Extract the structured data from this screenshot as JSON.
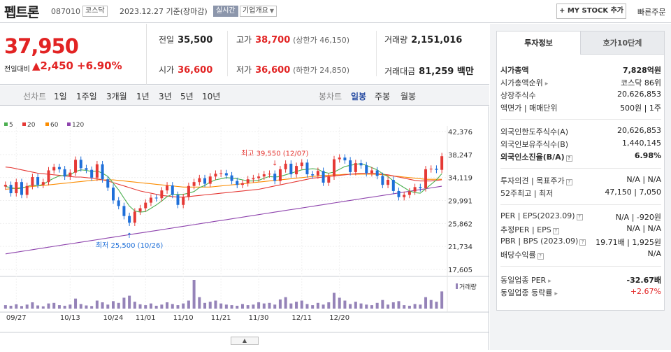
{
  "header": {
    "name": "펩트론",
    "code": "087010",
    "market": "코스닥",
    "date_info": "2023.12.27 기준(장마감)",
    "realtime": "실시간",
    "company_overview": "기업개요",
    "mystock_label": "+ MY STOCK 추가",
    "quick_order": "빠른주문"
  },
  "price": {
    "current": "37,950",
    "change_label": "전일대비",
    "change_value": "▲2,450",
    "change_pct": "+6.90%"
  },
  "summary": {
    "prev_label": "전일",
    "prev": "35,500",
    "high_label": "고가",
    "high": "38,700",
    "upper_limit": "(상한가 46,150)",
    "volume_label": "거래량",
    "volume": "2,151,016",
    "open_label": "시가",
    "open": "36,600",
    "low_label": "저가",
    "low": "36,600",
    "lower_limit": "(하한가 24,850)",
    "amount_label": "거래대금",
    "amount": "81,259 백만"
  },
  "chart_tabs": {
    "line_label": "선차트",
    "line": [
      "1일",
      "1주일",
      "3개월",
      "1년",
      "3년",
      "5년",
      "10년"
    ],
    "candle_label": "봉차트",
    "candle": [
      "일봉",
      "주봉",
      "월봉"
    ],
    "active_candle": "일봉"
  },
  "chart_data": {
    "type": "candlestick",
    "title": "",
    "legend": [
      "5",
      "20",
      "60",
      "120"
    ],
    "legend_colors": [
      "#4caf50",
      "#e53935",
      "#fb8c00",
      "#8e44ad"
    ],
    "y_ticks": [
      "42,376",
      "38,247",
      "34,119",
      "29,991",
      "25,862",
      "21,734",
      "17,605"
    ],
    "ylim": [
      17605,
      42376
    ],
    "x_labels": [
      "09/27",
      "10/13",
      "10/24",
      "11/01",
      "11/10",
      "11/21",
      "11/30",
      "12/11",
      "12/20"
    ],
    "max_annotation": "최고 39,550 (12/07)",
    "min_annotation": "최저 25,500 (10/26)",
    "volume_label": "거래량",
    "closes": [
      32800,
      31300,
      33300,
      31000,
      32600,
      34200,
      32800,
      33300,
      35400,
      36000,
      35600,
      34300,
      35000,
      37300,
      35800,
      35500,
      34100,
      36500,
      33800,
      32300,
      30000,
      29000,
      27200,
      26000,
      28000,
      28600,
      29600,
      30500,
      30400,
      31800,
      32700,
      31000,
      29200,
      30600,
      32600,
      33300,
      34000,
      33000,
      34300,
      34800,
      34900,
      34500,
      33500,
      32800,
      33100,
      33800,
      34000,
      34300,
      34700,
      34800,
      33500,
      35600,
      36600,
      34700,
      36200,
      36800,
      34700,
      34500,
      35300,
      33200,
      34300,
      37400,
      37700,
      37200,
      35100,
      36700,
      36300,
      34900,
      35400,
      34400,
      32800,
      33700,
      31700,
      30600,
      31000,
      31600,
      32400,
      32200,
      35600,
      35700,
      35500,
      37950
    ],
    "ma5": [
      32500,
      32300,
      32100,
      32200,
      32500,
      32800,
      32600,
      32900,
      33500,
      34000,
      34400,
      34500,
      34600,
      35200,
      35500,
      35400,
      35200,
      35300,
      34900,
      34300,
      33100,
      31900,
      30400,
      29000,
      28100,
      27900,
      28000,
      28600,
      29200,
      29900,
      30700,
      31100,
      31100,
      31100,
      31300,
      31600,
      32300,
      32700,
      33300,
      33700,
      33900,
      34100,
      34000,
      33900,
      33700,
      33500,
      33500,
      33600,
      34000,
      34300,
      34200,
      34300,
      34600,
      34900,
      35200,
      35500,
      35600,
      35700,
      35600,
      35100,
      34900,
      35100,
      35600,
      36100,
      36300,
      36500,
      36600,
      36300,
      35900,
      35500,
      34800,
      34300,
      33500,
      32900,
      32300,
      31700,
      31400,
      31300,
      32100,
      32900,
      33700,
      34800
    ],
    "ma20": [
      36000,
      35900,
      35700,
      35500,
      35300,
      35100,
      34900,
      34800,
      34700,
      34600,
      34500,
      34400,
      34300,
      34200,
      34200,
      34100,
      34000,
      33900,
      33700,
      33500,
      33200,
      32900,
      32600,
      32300,
      32000,
      31700,
      31500,
      31300,
      31100,
      30900,
      30800,
      30700,
      30600,
      30600,
      30700,
      30800,
      30900,
      31000,
      31100,
      31200,
      31300,
      31400,
      31500,
      31600,
      31700,
      31800,
      31900,
      32000,
      32200,
      32400,
      32600,
      32800,
      33000,
      33200,
      33400,
      33600,
      33800,
      34000,
      34100,
      34200,
      34300,
      34400,
      34500,
      34600,
      34700,
      34800,
      34900,
      34900,
      34900,
      34800,
      34700,
      34600,
      34400,
      34200,
      34000,
      33800,
      33600,
      33500,
      33500,
      33500,
      33600,
      33700
    ],
    "ma60": [
      32000,
      32100,
      32200,
      32300,
      32400,
      32500,
      32600,
      32700,
      32800,
      32900,
      33000,
      33100,
      33200,
      33300,
      33400,
      33500,
      33600,
      33700,
      33700,
      33700,
      33700,
      33600,
      33500,
      33400,
      33300,
      33200,
      33100,
      33000,
      32900,
      32800,
      32700,
      32600,
      32500,
      32400,
      32400,
      32400,
      32400,
      32400,
      32400,
      32500,
      32600,
      32700,
      32800,
      32900,
      33000,
      33100,
      33200,
      33300,
      33400,
      33500,
      33600,
      33700,
      33800,
      33900,
      34000,
      34100,
      34200,
      34300,
      34400,
      34500,
      34500,
      34600,
      34600,
      34700,
      34700,
      34700,
      34700,
      34700,
      34700,
      34700,
      34600,
      34500,
      34400,
      34300,
      34200,
      34100,
      34000,
      33900,
      33800,
      33800,
      33800,
      33800
    ],
    "ma120": [
      20400,
      20550,
      20700,
      20850,
      21000,
      21150,
      21300,
      21450,
      21600,
      21750,
      21900,
      22050,
      22200,
      22350,
      22500,
      22650,
      22800,
      22950,
      23100,
      23250,
      23400,
      23550,
      23700,
      23850,
      24000,
      24150,
      24300,
      24450,
      24600,
      24750,
      24900,
      25050,
      25200,
      25350,
      25500,
      25650,
      25800,
      25950,
      26100,
      26250,
      26400,
      26550,
      26700,
      26850,
      27000,
      27150,
      27300,
      27450,
      27600,
      27750,
      27900,
      28050,
      28200,
      28350,
      28500,
      28650,
      28800,
      28950,
      29100,
      29250,
      29400,
      29550,
      29700,
      29850,
      30000,
      30150,
      30300,
      30450,
      30600,
      30750,
      30900,
      31050,
      31200,
      31350,
      31500,
      31650,
      31800,
      31950,
      32100,
      32250,
      32400,
      32550
    ],
    "volume_max": 100,
    "volumes": [
      12,
      10,
      15,
      9,
      14,
      22,
      11,
      8,
      18,
      20,
      12,
      10,
      14,
      35,
      16,
      11,
      9,
      28,
      22,
      14,
      26,
      20,
      38,
      45,
      24,
      15,
      12,
      18,
      10,
      14,
      22,
      16,
      12,
      18,
      28,
      100,
      40,
      20,
      24,
      28,
      18,
      14,
      12,
      10,
      16,
      12,
      14,
      22,
      18,
      20,
      14,
      32,
      40,
      18,
      24,
      28,
      16,
      12,
      20,
      14,
      22,
      55,
      38,
      28,
      16,
      24,
      18,
      14,
      12,
      20,
      30,
      14,
      22,
      26,
      12,
      10,
      16,
      14,
      40,
      30,
      24,
      60
    ]
  },
  "invest_tabs": {
    "info": "투자정보",
    "ask10": "호가10단계"
  },
  "invest": {
    "mcap_label": "시가총액",
    "mcap": "7,828억원",
    "mcap_rank_label": "시가총액순위",
    "mcap_rank": "코스닥 86위",
    "shares_label": "상장주식수",
    "shares": "20,626,853",
    "par_label": "액면가 | 매매단위",
    "par": "500원 | 1주",
    "foreign_limit_label": "외국인한도주식수(A)",
    "foreign_limit": "20,626,853",
    "foreign_hold_label": "외국인보유주식수(B)",
    "foreign_hold": "1,440,145",
    "foreign_ratio_label": "외국인소진율(B/A)",
    "foreign_ratio": "6.98%",
    "opinion_label": "투자의견 | 목표주가",
    "opinion": "N/A | N/A",
    "w52_label": "52주최고 | 최저",
    "w52": "47,150 | 7,050",
    "per_label": "PER | EPS(2023.09)",
    "per": "N/A | -920원",
    "eper_label": "추정PER | EPS",
    "eper": "N/A | N/A",
    "pbr_label": "PBR | BPS (2023.09)",
    "pbr": "19.71배 | 1,925원",
    "dividend_label": "배당수익률",
    "dividend": "N/A",
    "sector_per_label": "동일업종 PER",
    "sector_per": "-32.67배",
    "sector_rate_label": "동일업종 등락률",
    "sector_rate": "+2.67%"
  }
}
